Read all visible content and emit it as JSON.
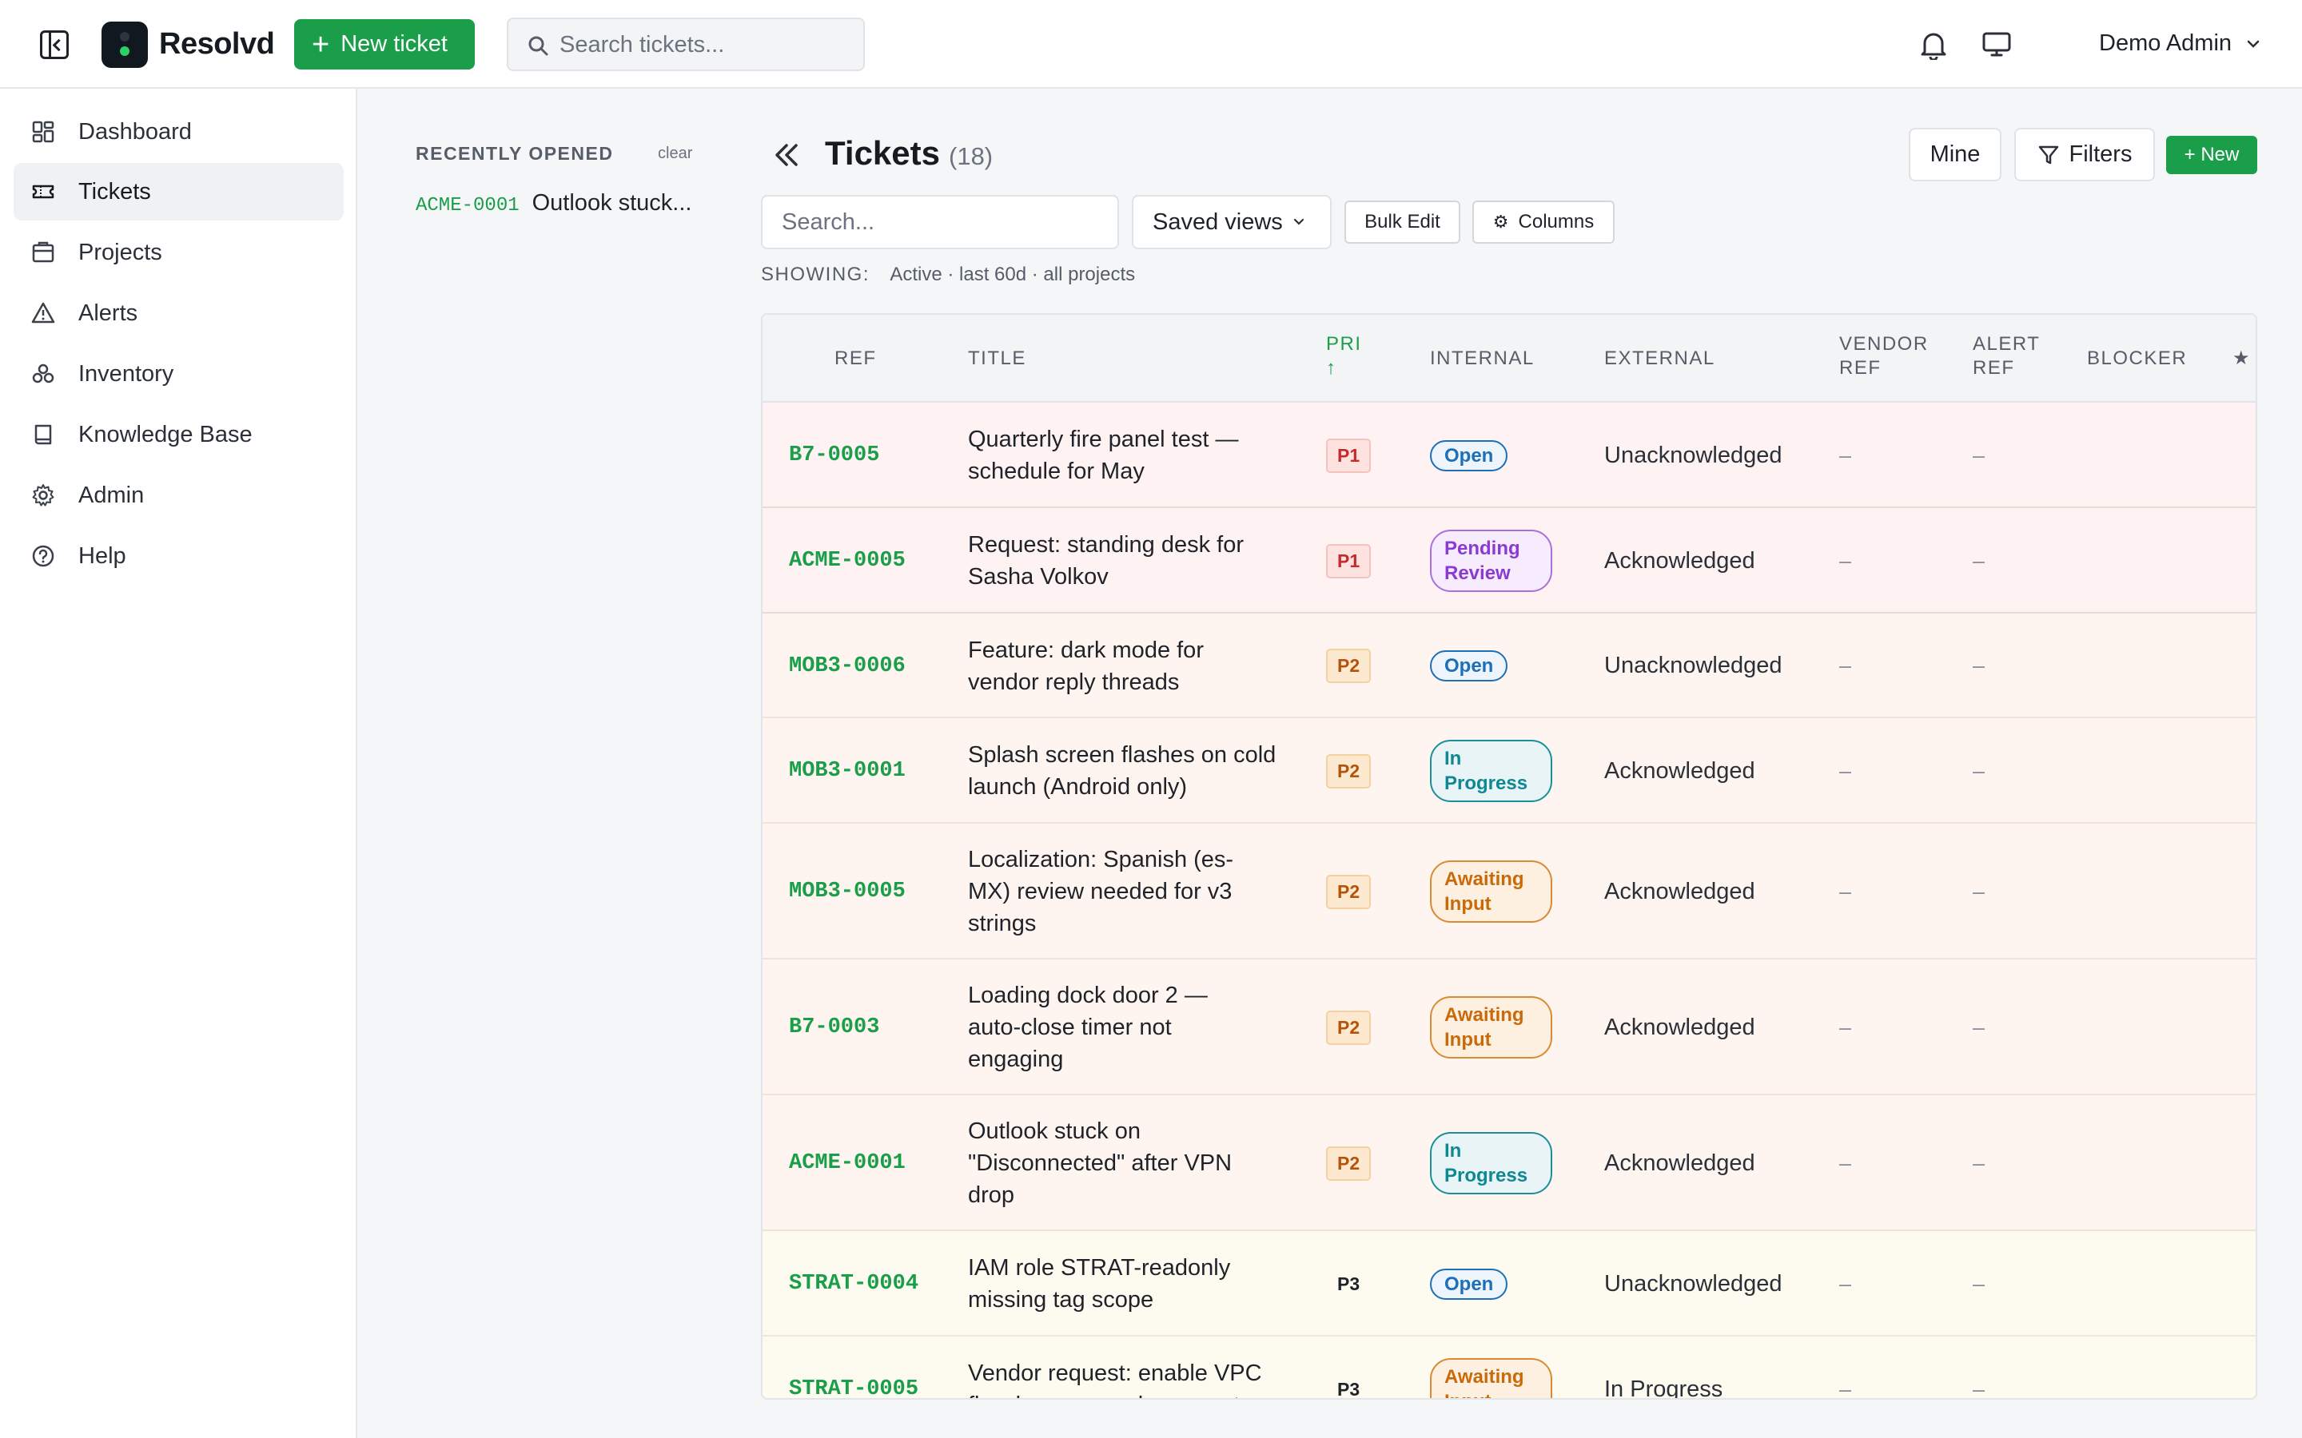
{
  "app": {
    "brand": "Resolvd",
    "new_ticket_label": "New ticket",
    "search_placeholder": "Search tickets...",
    "user_name": "Demo Admin",
    "accent_color": "#1a9e4a"
  },
  "sidebar": {
    "items": [
      {
        "label": "Dashboard",
        "icon": "dashboard-icon"
      },
      {
        "label": "Tickets",
        "icon": "ticket-icon",
        "active": true
      },
      {
        "label": "Projects",
        "icon": "projects-icon"
      },
      {
        "label": "Alerts",
        "icon": "alert-icon"
      },
      {
        "label": "Inventory",
        "icon": "inventory-icon"
      },
      {
        "label": "Knowledge Base",
        "icon": "book-icon"
      },
      {
        "label": "Admin",
        "icon": "gear-icon"
      },
      {
        "label": "Help",
        "icon": "help-icon"
      }
    ]
  },
  "recent": {
    "title": "RECENTLY OPENED",
    "clear_label": "clear",
    "items": [
      {
        "ref": "ACME-0001",
        "name": "Outlook stuck..."
      }
    ]
  },
  "main": {
    "title": "Tickets",
    "count": "(18)",
    "mine_label": "Mine",
    "filters_label": "Filters",
    "new_label": "+ New",
    "search_placeholder": "Search...",
    "saved_views_label": "Saved views",
    "bulk_edit_label": "Bulk Edit",
    "columns_label": "Columns",
    "showing_label": "SHOWING:",
    "showing_value": "Active · last 60d · all projects"
  },
  "table": {
    "headers": {
      "ref": "REF",
      "title": "TITLE",
      "pri": "PRI",
      "pri_sort": "↑",
      "internal": "INTERNAL",
      "external": "EXTERNAL",
      "vendor_ref_1": "VENDOR",
      "vendor_ref_2": "REF",
      "alert_ref_1": "ALERT",
      "alert_ref_2": "REF",
      "blocker": "BLOCKER",
      "star": "★"
    },
    "rows": [
      {
        "ref": "B7-0005",
        "title": "Quarterly fire panel test — schedule for May",
        "pri": "P1",
        "internal": "Open",
        "external": "Unacknowledged",
        "vendor_ref": "–",
        "alert_ref": "–"
      },
      {
        "ref": "ACME-0005",
        "title": "Request: standing desk for Sasha Volkov",
        "pri": "P1",
        "internal": "Pending Review",
        "external": "Acknowledged",
        "vendor_ref": "–",
        "alert_ref": "–"
      },
      {
        "ref": "MOB3-0006",
        "title": "Feature: dark mode for vendor reply threads",
        "pri": "P2",
        "internal": "Open",
        "external": "Unacknowledged",
        "vendor_ref": "–",
        "alert_ref": "–"
      },
      {
        "ref": "MOB3-0001",
        "title": "Splash screen flashes on cold launch (Android only)",
        "pri": "P2",
        "internal": "In Progress",
        "external": "Acknowledged",
        "vendor_ref": "–",
        "alert_ref": "–"
      },
      {
        "ref": "MOB3-0005",
        "title": "Localization: Spanish (es-MX) review needed for v3 strings",
        "pri": "P2",
        "internal": "Awaiting Input",
        "external": "Acknowledged",
        "vendor_ref": "–",
        "alert_ref": "–"
      },
      {
        "ref": "B7-0003",
        "title": "Loading dock door 2 — auto-close timer not engaging",
        "pri": "P2",
        "internal": "Awaiting Input",
        "external": "Acknowledged",
        "vendor_ref": "–",
        "alert_ref": "–"
      },
      {
        "ref": "ACME-0001",
        "title": "Outlook stuck on \"Disconnected\" after VPN drop",
        "pri": "P2",
        "internal": "In Progress",
        "external": "Acknowledged",
        "vendor_ref": "–",
        "alert_ref": "–"
      },
      {
        "ref": "STRAT-0004",
        "title": "IAM role STRAT-readonly missing tag scope",
        "pri": "P3",
        "internal": "Open",
        "external": "Unacknowledged",
        "vendor_ref": "–",
        "alert_ref": "–"
      },
      {
        "ref": "STRAT-0005",
        "title": "Vendor request: enable VPC flow logs on prod-use-east",
        "pri": "P3",
        "internal": "Awaiting Input",
        "external": "In Progress",
        "vendor_ref": "–",
        "alert_ref": "–"
      }
    ]
  }
}
